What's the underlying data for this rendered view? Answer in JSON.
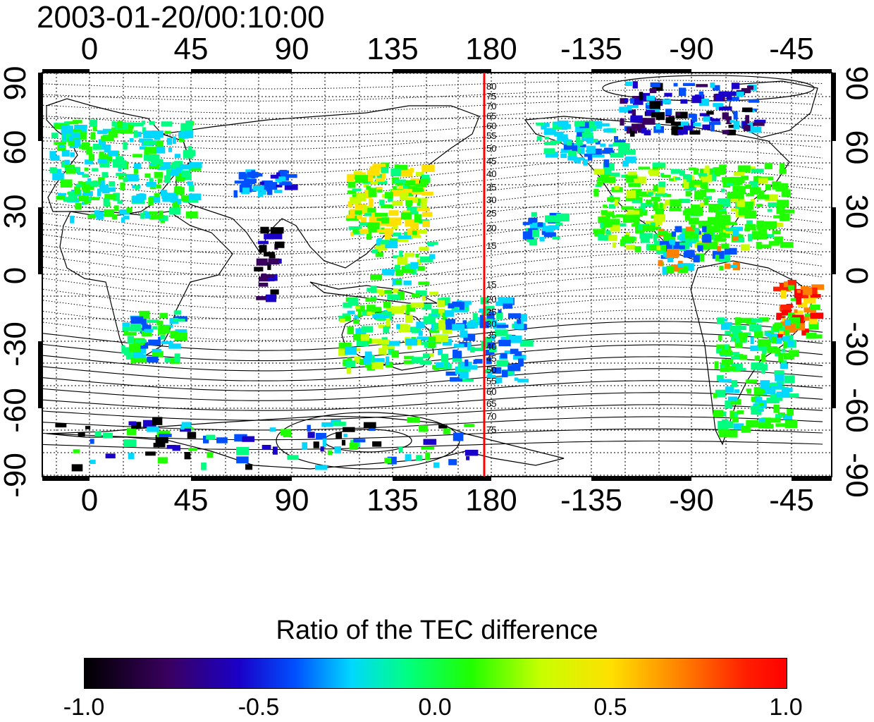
{
  "title": "2003-01-20/00:10:00",
  "map": {
    "lon_ticks": [
      "0",
      "45",
      "90",
      "135",
      "180",
      "-135",
      "-90",
      "-45"
    ],
    "lat_ticks_left": [
      "90",
      "60",
      "30",
      "0",
      "-30",
      "-60",
      "-90"
    ],
    "lat_ticks_right": [
      "90",
      "60",
      "30",
      "0",
      "-30",
      "-60",
      "-90"
    ],
    "meridian_line_color": "#ff0000",
    "magnetic_lat_labels_north": [
      "80",
      "75",
      "70",
      "65",
      "60",
      "55",
      "50",
      "45",
      "40",
      "35",
      "30",
      "25",
      "20",
      "15"
    ],
    "magnetic_lat_labels_south": [
      "15",
      "20",
      "25",
      "30",
      "35",
      "40",
      "45",
      "50",
      "55",
      "60",
      "65",
      "70",
      "75"
    ]
  },
  "colorbar": {
    "title": "Ratio of the TEC difference",
    "ticks": [
      "-1.0",
      "-0.5",
      "0.0",
      "0.5",
      "1.0"
    ],
    "colors": [
      "#000000",
      "#3a0060",
      "#1a00c8",
      "#0050ff",
      "#00d8ff",
      "#00ff80",
      "#20ff00",
      "#c8ff00",
      "#ffe000",
      "#ff8000",
      "#ff2000",
      "#ff0000"
    ]
  }
}
